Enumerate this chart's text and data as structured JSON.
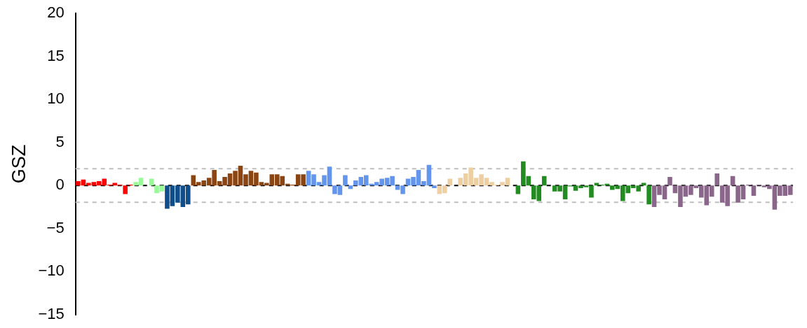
{
  "chart_data": {
    "type": "bar",
    "ylabel": "GSZ",
    "ylim": [
      -15,
      20
    ],
    "yticks": [
      {
        "value": -15,
        "label": "−15"
      },
      {
        "value": -10,
        "label": "−10"
      },
      {
        "value": -5,
        "label": "−5"
      },
      0,
      5,
      10,
      15,
      20
    ],
    "categories": [
      null,
      null,
      null,
      null,
      null,
      null,
      null,
      null,
      null,
      null,
      null,
      null,
      null,
      null,
      null,
      null,
      null,
      null,
      null,
      null,
      null,
      null,
      null,
      null,
      null,
      null,
      null,
      null,
      null,
      null,
      null,
      null,
      null,
      null,
      null,
      null,
      null,
      null,
      null,
      null,
      null,
      null,
      null,
      null,
      null,
      null,
      null,
      null,
      null,
      null,
      null,
      null,
      null,
      null,
      null,
      null,
      null,
      null,
      null,
      null,
      null,
      null,
      null,
      null,
      null,
      null,
      null,
      null,
      null,
      null,
      null,
      null,
      null,
      null,
      null,
      null,
      null,
      null,
      null,
      null,
      null,
      null,
      null,
      null,
      null,
      null,
      null,
      null,
      null,
      null,
      null,
      null,
      null,
      null,
      null,
      null,
      null,
      null,
      null,
      null,
      null,
      null,
      null,
      null,
      null,
      null,
      null,
      null,
      null,
      null,
      null,
      null,
      null,
      null,
      null,
      null,
      null,
      null,
      null,
      null,
      null,
      null,
      null,
      null,
      null,
      null,
      null,
      null,
      null,
      null,
      null,
      null,
      null,
      null,
      null,
      null,
      null
    ],
    "values": [
      0.5,
      0.7,
      0.3,
      0.4,
      0.5,
      0.8,
      0.1,
      0.3,
      0.1,
      -1.0,
      0.1,
      0.4,
      0.9,
      0,
      0.8,
      -0.9,
      -0.7,
      -2.7,
      -2.4,
      -2.0,
      -2.5,
      -2.2,
      1.2,
      0.4,
      0.6,
      0.9,
      1.8,
      0.5,
      1.0,
      1.4,
      1.7,
      2.3,
      1.3,
      1.7,
      1.5,
      0.4,
      0.3,
      1.3,
      1.3,
      1.1,
      0.2,
      0.1,
      1.3,
      1.3,
      1.7,
      1.3,
      0.4,
      1.2,
      2.2,
      -1.0,
      -1.1,
      1.2,
      -0.4,
      0.6,
      1.0,
      1.2,
      0.2,
      0.4,
      0.8,
      0.9,
      1.1,
      -0.5,
      -1.0,
      0.8,
      1.0,
      1.8,
      0.5,
      2.4,
      -0.3,
      -1.0,
      -0.9,
      0.8,
      0,
      0.9,
      1.4,
      2.1,
      0.9,
      1.3,
      0.9,
      0.4,
      0.1,
      0.4,
      0.9,
      0,
      -1.0,
      2.8,
      1.1,
      -1.6,
      -1.8,
      1.1,
      0,
      -0.7,
      -0.7,
      -1.6,
      -0.1,
      -0.6,
      -0.3,
      -0.2,
      -1.4,
      0.3,
      0.1,
      0.2,
      -0.5,
      -0.4,
      -1.8,
      -0.9,
      -0.3,
      -0.7,
      0.3,
      -2.2,
      -2.5,
      -1.1,
      -1.6,
      1.0,
      -0.9,
      -2.5,
      -1.3,
      -1.1,
      -0.3,
      -1.4,
      -2.3,
      -1.3,
      1.4,
      -2.0,
      -2.4,
      1.1,
      -2.0,
      -1.6,
      0.1,
      -1.2,
      0.1,
      -0.2,
      -0.4,
      -2.8,
      -1.2,
      -1.2,
      -1.1
    ],
    "colors": [
      "#ff0000",
      "#ff0000",
      "#ff0000",
      "#ff0000",
      "#ff0000",
      "#ff0000",
      "#ff0000",
      "#ff0000",
      "#ff0000",
      "#ff0000",
      "#ff0000",
      "#98fb98",
      "#98fb98",
      "#98fb98",
      "#98fb98",
      "#98fb98",
      "#98fb98",
      "#104e8b",
      "#104e8b",
      "#104e8b",
      "#104e8b",
      "#104e8b",
      "#8b4513",
      "#8b4513",
      "#8b4513",
      "#8b4513",
      "#8b4513",
      "#8b4513",
      "#8b4513",
      "#8b4513",
      "#8b4513",
      "#8b4513",
      "#8b4513",
      "#8b4513",
      "#8b4513",
      "#8b4513",
      "#8b4513",
      "#8b4513",
      "#8b4513",
      "#8b4513",
      "#8b4513",
      "#8b4513",
      "#8b4513",
      "#8b4513",
      "#6495ed",
      "#6495ed",
      "#6495ed",
      "#6495ed",
      "#6495ed",
      "#6495ed",
      "#6495ed",
      "#6495ed",
      "#6495ed",
      "#6495ed",
      "#6495ed",
      "#6495ed",
      "#6495ed",
      "#6495ed",
      "#6495ed",
      "#6495ed",
      "#6495ed",
      "#6495ed",
      "#6495ed",
      "#6495ed",
      "#6495ed",
      "#6495ed",
      "#6495ed",
      "#6495ed",
      "#6495ed",
      "#eecfa1",
      "#eecfa1",
      "#eecfa1",
      "#eecfa1",
      "#eecfa1",
      "#eecfa1",
      "#eecfa1",
      "#eecfa1",
      "#eecfa1",
      "#eecfa1",
      "#eecfa1",
      "#eecfa1",
      "#eecfa1",
      "#eecfa1",
      "#eecfa1",
      "#228b22",
      "#228b22",
      "#228b22",
      "#228b22",
      "#228b22",
      "#228b22",
      "#228b22",
      "#228b22",
      "#228b22",
      "#228b22",
      "#228b22",
      "#228b22",
      "#228b22",
      "#228b22",
      "#228b22",
      "#228b22",
      "#228b22",
      "#228b22",
      "#228b22",
      "#228b22",
      "#228b22",
      "#228b22",
      "#228b22",
      "#228b22",
      "#228b22",
      "#228b22",
      "#8b668b",
      "#8b668b",
      "#8b668b",
      "#8b668b",
      "#8b668b",
      "#8b668b",
      "#8b668b",
      "#8b668b",
      "#8b668b",
      "#8b668b",
      "#8b668b",
      "#8b668b",
      "#8b668b",
      "#8b668b",
      "#8b668b",
      "#8b668b",
      "#8b668b",
      "#8b668b",
      "#8b668b",
      "#8b668b",
      "#8b668b",
      "#8b668b",
      "#8b668b",
      "#8b668b",
      "#8b668b",
      "#8b668b",
      "#8b668b"
    ],
    "ref_lines": [
      {
        "axis": "y",
        "value": 1.96,
        "color": "#bebebe",
        "line_style": "dashed"
      },
      {
        "axis": "y",
        "value": -1.96,
        "color": "#bebebe",
        "line_style": "dashed"
      },
      {
        "axis": "y",
        "value": 0,
        "color": "#000000",
        "line_style": "dashed"
      }
    ],
    "grid": false,
    "legend": false,
    "tick_labels": "y"
  }
}
